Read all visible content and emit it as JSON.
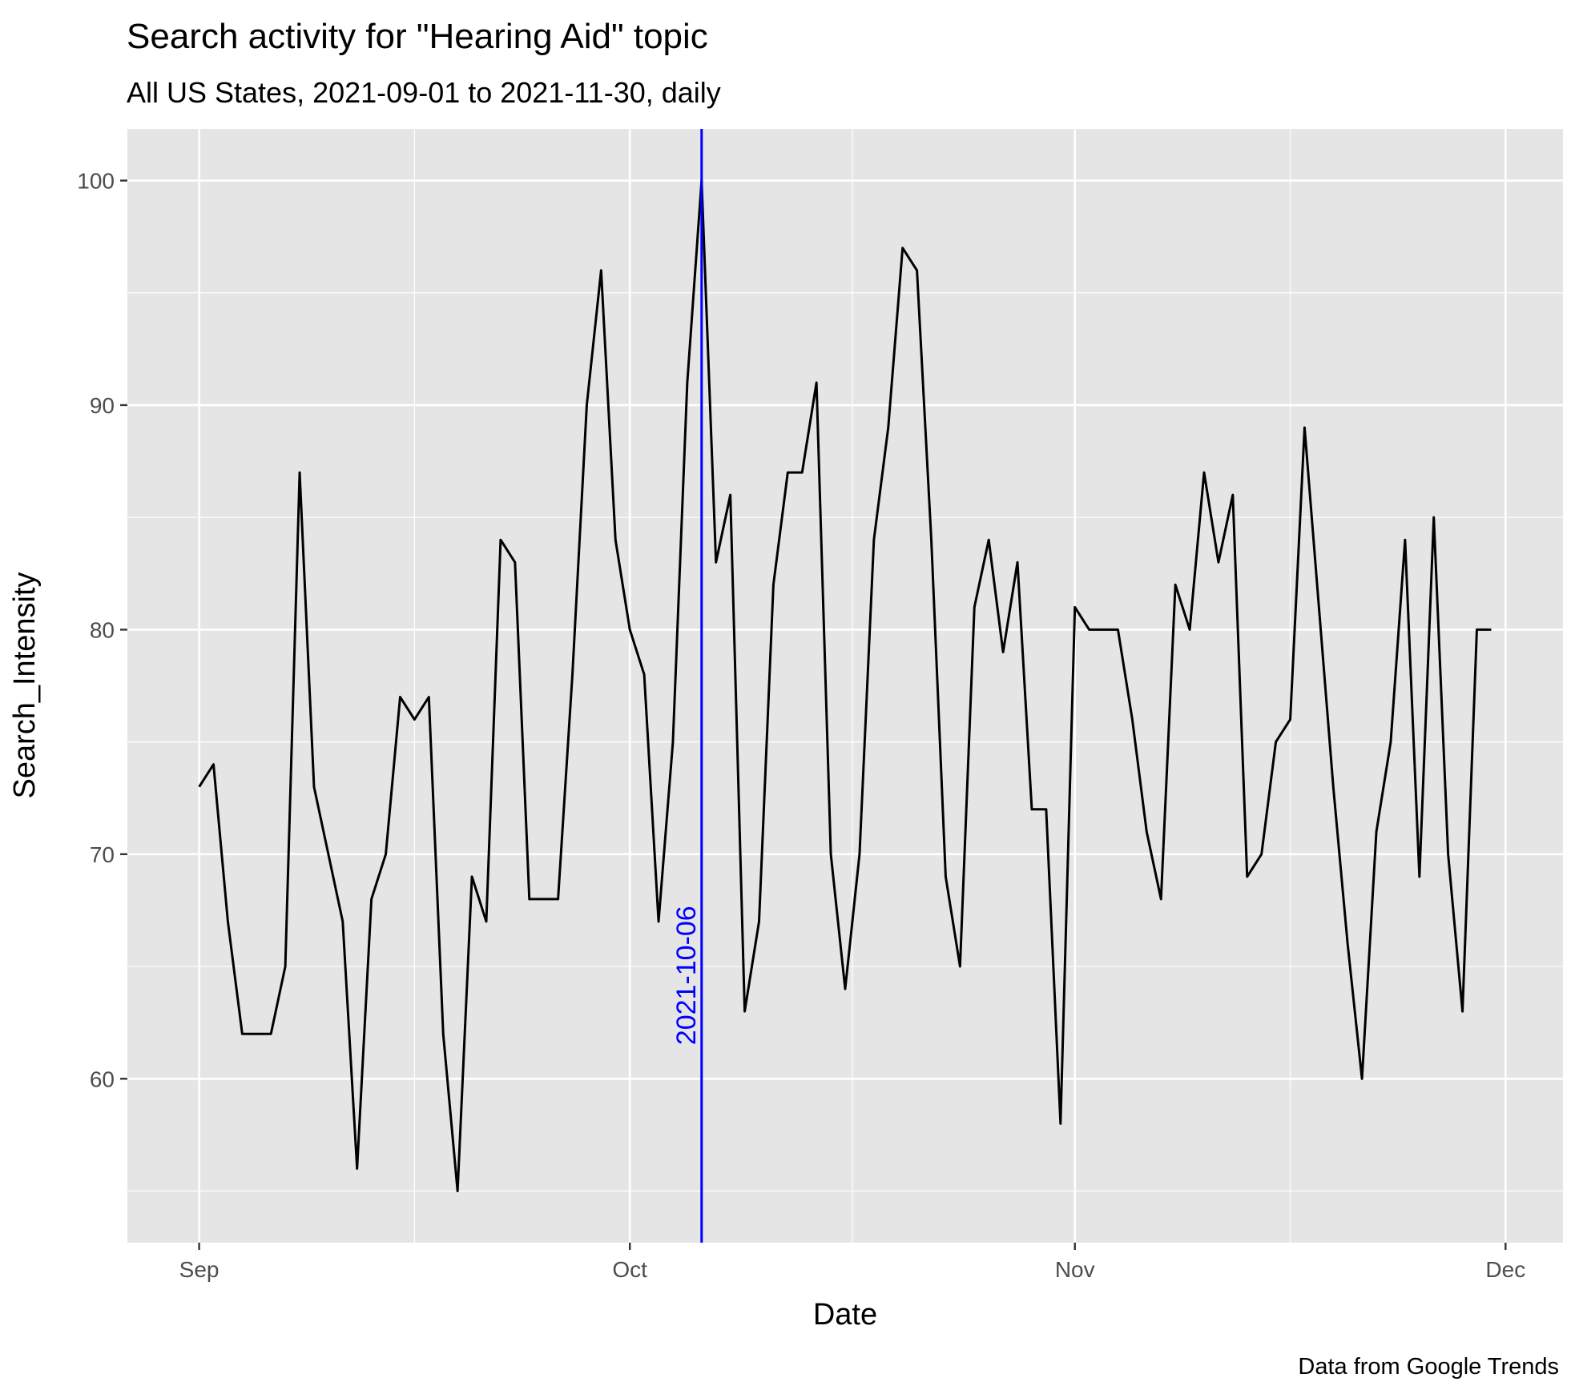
{
  "chart_data": {
    "type": "line",
    "title": "Search activity for \"Hearing Aid\" topic",
    "subtitle": "All US States, 2021-09-01 to 2021-11-30, daily",
    "xlabel": "Date",
    "ylabel": "Search_Intensity",
    "caption": "Data from Google Trends",
    "x_start": "2021-09-01",
    "x_end": "2021-11-30",
    "x_ticks": [
      {
        "date": "2021-09-01",
        "label": "Sep"
      },
      {
        "date": "2021-10-01",
        "label": "Oct"
      },
      {
        "date": "2021-11-01",
        "label": "Nov"
      },
      {
        "date": "2021-12-01",
        "label": "Dec"
      }
    ],
    "y_ticks": [
      60,
      70,
      80,
      90,
      100
    ],
    "ylim": [
      52.7,
      102.3
    ],
    "xlim": [
      "2021-08-27",
      "2021-12-05"
    ],
    "grid": true,
    "line_color": "#000000",
    "panel_bg": "#e5e5e5",
    "grid_color": "#ffffff",
    "annotation": {
      "date": "2021-10-06",
      "label": "2021-10-06",
      "color": "#0000ff"
    },
    "series": [
      {
        "values": [
          73,
          74,
          67,
          62,
          62,
          62,
          65,
          87,
          73,
          70,
          67,
          56,
          68,
          70,
          77,
          76,
          77,
          62,
          55,
          69,
          67,
          84,
          83,
          68,
          68,
          68,
          78,
          90,
          96,
          84,
          80,
          78,
          67,
          75,
          91,
          100,
          83,
          86,
          63,
          67,
          82,
          87,
          87,
          91,
          70,
          64,
          70,
          84,
          89,
          97,
          96,
          84,
          69,
          65,
          81,
          84,
          79,
          83,
          72,
          72,
          58,
          81,
          80,
          80,
          80,
          76,
          71,
          68,
          82,
          80,
          87,
          83,
          86,
          69,
          70,
          75,
          76,
          89,
          81,
          73,
          66,
          60,
          71,
          75,
          84,
          69,
          85,
          70,
          63,
          80,
          80
        ]
      }
    ]
  }
}
